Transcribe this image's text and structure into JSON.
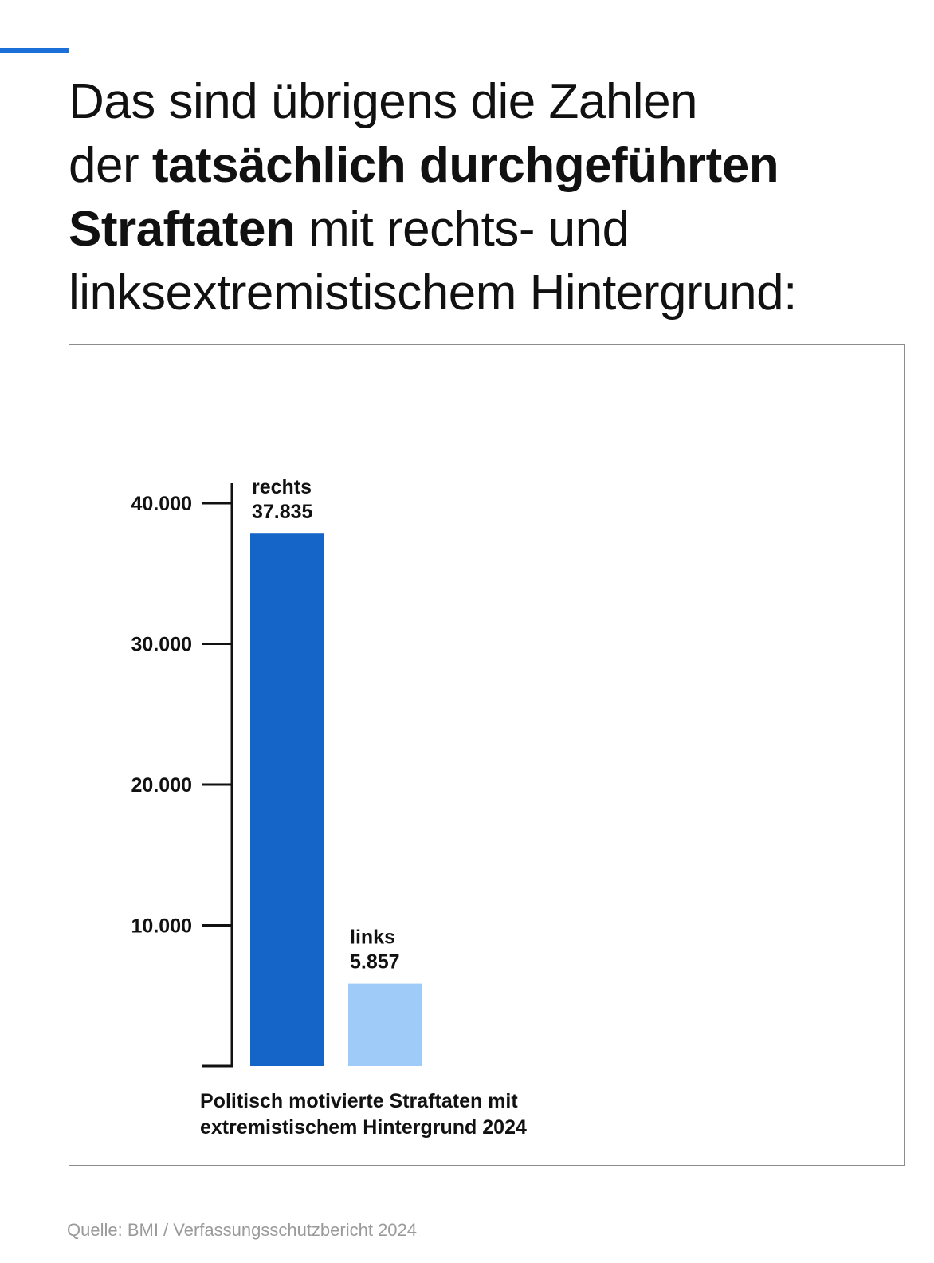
{
  "headline": {
    "line1": "Das sind übrigens die Zahlen",
    "line2_pre": "der ",
    "line2_bold": "tatsächlich durchgeführten",
    "line3_bold": "Straftaten",
    "line3_post": " mit rechts- und",
    "line4": "linksextremistischem Hintergrund:"
  },
  "source": "Quelle: BMI / Verfassungsschutzbericht 2024",
  "colors": {
    "accent": "#1a6fd9",
    "bar_rechts": "#1565c8",
    "bar_links": "#9ecbf8"
  },
  "chart_data": {
    "type": "bar",
    "categories": [
      "rechts",
      "links"
    ],
    "values": [
      37835,
      5857
    ],
    "value_labels": [
      "37.835",
      "5.857"
    ],
    "yticks": [
      10000,
      20000,
      30000,
      40000
    ],
    "ytick_labels": [
      "10.000",
      "20.000",
      "30.000",
      "40.000"
    ],
    "ylim": [
      0,
      41500
    ],
    "xlabel_lines": [
      "Politisch motivierte Straftaten mit",
      "extremistischem Hintergrund 2024"
    ],
    "grid": false,
    "legend": "none"
  }
}
